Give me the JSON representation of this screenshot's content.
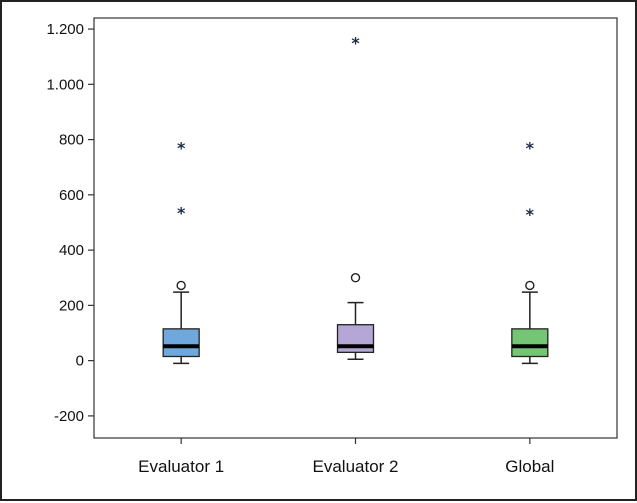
{
  "chart_data": {
    "type": "box",
    "title": "",
    "xlabel": "",
    "ylabel": "",
    "ylim": [
      -280,
      1240
    ],
    "yticks": [
      -200,
      0,
      200,
      400,
      600,
      800,
      1000,
      1200
    ],
    "ytick_labels": [
      "-200",
      "0",
      "200",
      "400",
      "600",
      "800",
      "1.000",
      "1.200"
    ],
    "categories": [
      "Evaluator 1",
      "Evaluator 2",
      "Global"
    ],
    "grid": false,
    "series": [
      {
        "color": "#6fa8dc",
        "min": -10,
        "q1": 15,
        "median": 52,
        "q3": 115,
        "max": 248,
        "outliers_circle": [
          272
        ],
        "outliers_star": [
          540,
          775
        ]
      },
      {
        "color": "#b4a7d6",
        "min": 5,
        "q1": 30,
        "median": 52,
        "q3": 130,
        "max": 210,
        "outliers_circle": [
          300
        ],
        "outliers_star": [
          1155
        ]
      },
      {
        "color": "#74c674",
        "min": -10,
        "q1": 15,
        "median": 52,
        "q3": 115,
        "max": 248,
        "outliers_circle": [
          272
        ],
        "outliers_star": [
          535,
          775
        ]
      }
    ]
  }
}
